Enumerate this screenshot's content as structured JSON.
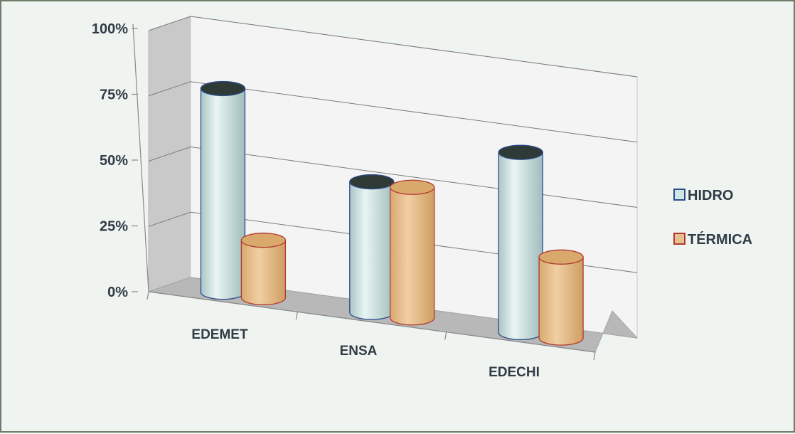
{
  "chart_data": {
    "type": "bar",
    "style": "3d-cylinder",
    "categories": [
      "EDEMET",
      "ENSA",
      "EDECHI"
    ],
    "series": [
      {
        "name": "HIDRO",
        "values": [
          78,
          50,
          69
        ],
        "color": "#cfe6e4",
        "stroke": "#2c4b8c"
      },
      {
        "name": "TÉRMICA",
        "values": [
          22,
          50,
          31
        ],
        "color": "#e6c090",
        "stroke": "#b13a2e"
      }
    ],
    "yticks": [
      "0%",
      "25%",
      "50%",
      "75%",
      "100%"
    ],
    "ylim": [
      0,
      100
    ],
    "grid": true,
    "legend_position": "right"
  }
}
